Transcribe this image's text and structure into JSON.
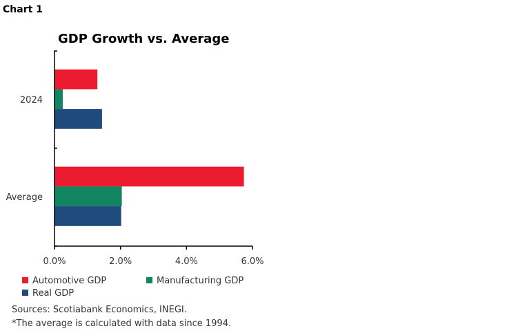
{
  "header": "Chart 1",
  "chart_data": {
    "type": "bar",
    "orientation": "horizontal",
    "title": "GDP Growth vs. Average",
    "categories": [
      "2024",
      "Average"
    ],
    "series": [
      {
        "name": "Automotive GDP",
        "color": "#ED1B2F",
        "values": [
          1.3,
          5.74
        ]
      },
      {
        "name": "Manufacturing GDP",
        "color": "#138562",
        "values": [
          0.25,
          2.04
        ]
      },
      {
        "name": "Real GDP",
        "color": "#1F4A7C",
        "values": [
          1.44,
          2.02
        ]
      }
    ],
    "xlim": [
      0,
      6
    ],
    "xticks": [
      "0.0%",
      "2.0%",
      "4.0%",
      "6.0%"
    ],
    "grid": false,
    "legend": "bottom"
  },
  "footer": {
    "sources": "Sources: Scotiabank Economics, INEGI.",
    "note": "*The average is calculated with data since 1994."
  }
}
